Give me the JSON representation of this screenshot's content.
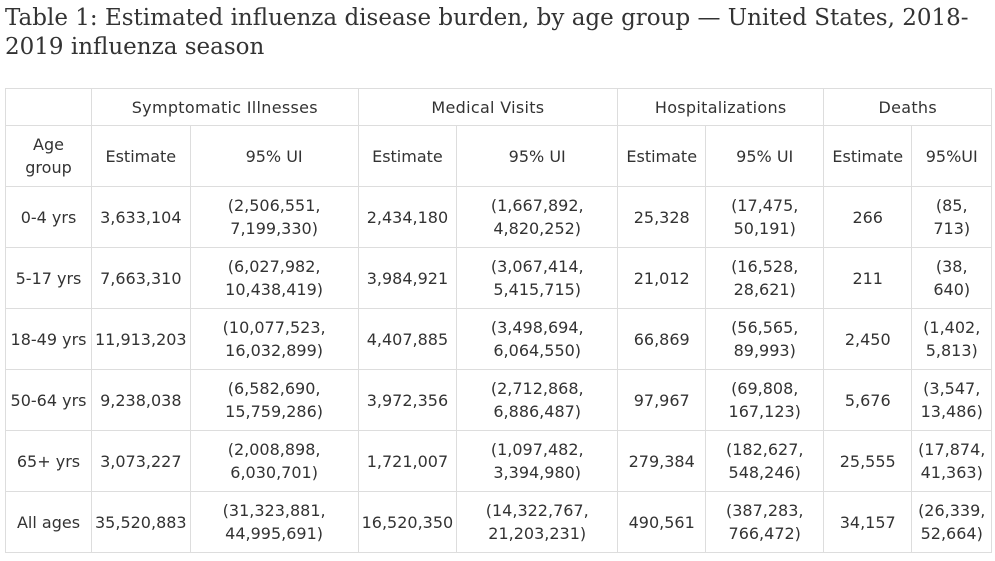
{
  "title": "Table 1: Estimated influenza disease burden, by age group — United States, 2018-2019 influenza season",
  "groups": [
    "Symptomatic Illnesses",
    "Medical Visits",
    "Hospitalizations",
    "Deaths"
  ],
  "subheaders": [
    "Age group",
    "Estimate",
    "95% UI",
    "Estimate",
    "95% UI",
    "Estimate",
    "95% UI",
    "Estimate",
    "95%UI"
  ],
  "rows": [
    [
      "0-4 yrs",
      "3,633,104",
      "(2,506,551, 7,199,330)",
      "2,434,180",
      "(1,667,892, 4,820,252)",
      "25,328",
      "(17,475, 50,191)",
      "266",
      "(85, 713)"
    ],
    [
      "5-17 yrs",
      "7,663,310",
      "(6,027,982, 10,438,419)",
      "3,984,921",
      "(3,067,414, 5,415,715)",
      "21,012",
      "(16,528, 28,621)",
      "211",
      "(38, 640)"
    ],
    [
      "18-49 yrs",
      "11,913,203",
      "(10,077,523, 16,032,899)",
      "4,407,885",
      "(3,498,694, 6,064,550)",
      "66,869",
      "(56,565, 89,993)",
      "2,450",
      "(1,402, 5,813)"
    ],
    [
      "50-64 yrs",
      "9,238,038",
      "(6,582,690, 15,759,286)",
      "3,972,356",
      "(2,712,868, 6,886,487)",
      "97,967",
      "(69,808, 167,123)",
      "5,676",
      "(3,547, 13,486)"
    ],
    [
      "65+ yrs",
      "3,073,227",
      "(2,008,898, 6,030,701)",
      "1,721,007",
      "(1,097,482, 3,394,980)",
      "279,384",
      "(182,627, 548,246)",
      "25,555",
      "(17,874, 41,363)"
    ],
    [
      "All ages",
      "35,520,883",
      "(31,323,881, 44,995,691)",
      "16,520,350",
      "(14,322,767, 21,203,231)",
      "490,561",
      "(387,283, 766,472)",
      "34,157",
      "(26,339, 52,664)"
    ]
  ]
}
